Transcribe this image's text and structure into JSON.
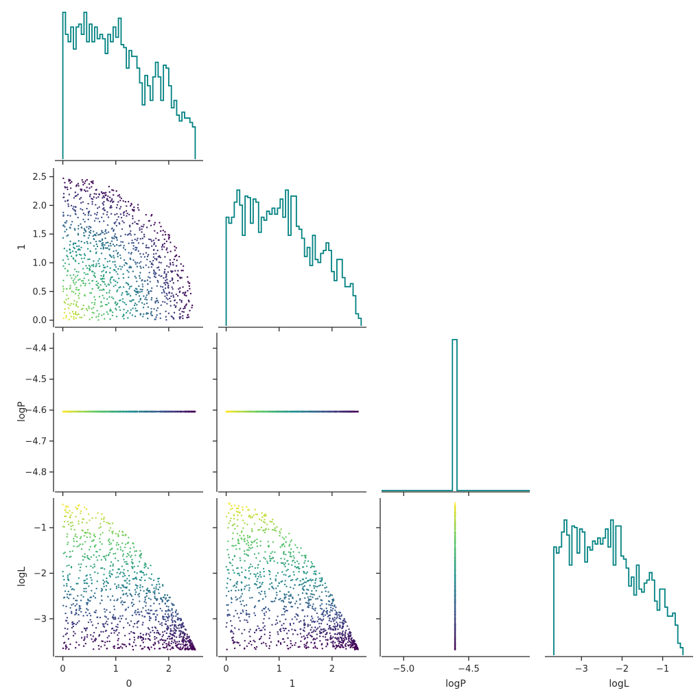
{
  "figure": {
    "variables": [
      "0",
      "1",
      "logP",
      "logL"
    ],
    "hist_color": "#008080",
    "colormap": "viridis"
  },
  "chart_data": [
    {
      "type": "histogram",
      "variable": "0",
      "row": 0,
      "col": 0,
      "xlim": [
        -0.15,
        2.65
      ],
      "bin_range": [
        0.0,
        2.5
      ],
      "counts": [
        1.0,
        0.85,
        0.8,
        0.9,
        0.75,
        0.9,
        0.92,
        0.85,
        1.0,
        0.8,
        0.92,
        0.8,
        0.9,
        0.82,
        0.85,
        0.82,
        0.72,
        0.85,
        0.8,
        0.9,
        0.83,
        0.96,
        0.78,
        0.76,
        0.62,
        0.74,
        0.7,
        0.7,
        0.62,
        0.52,
        0.37,
        0.57,
        0.5,
        0.4,
        0.56,
        0.66,
        0.56,
        0.4,
        0.64,
        0.62,
        0.5,
        0.35,
        0.4,
        0.3,
        0.26,
        0.32,
        0.28,
        0.28,
        0.25,
        0.22
      ]
    },
    {
      "type": "histogram",
      "variable": "1",
      "row": 1,
      "col": 1,
      "xlim": [
        -0.15,
        2.65
      ],
      "bin_range": [
        0.0,
        2.55
      ],
      "counts": [
        0.72,
        0.68,
        0.72,
        0.82,
        0.9,
        0.8,
        0.6,
        0.86,
        0.85,
        0.68,
        0.84,
        0.82,
        0.62,
        0.72,
        0.7,
        0.76,
        0.74,
        0.78,
        0.74,
        0.78,
        0.84,
        0.72,
        0.9,
        0.6,
        0.86,
        0.86,
        0.66,
        0.64,
        0.58,
        0.46,
        0.52,
        0.4,
        0.6,
        0.44,
        0.42,
        0.48,
        0.5,
        0.55,
        0.5,
        0.36,
        0.3,
        0.44,
        0.44,
        0.32,
        0.26,
        0.26,
        0.28,
        0.2,
        0.08,
        0.05
      ]
    },
    {
      "type": "histogram",
      "variable": "logP",
      "row": 2,
      "col": 2,
      "xlim": [
        -5.17,
        -4.03
      ],
      "bins": [
        {
          "from": -4.625,
          "to": -4.59,
          "count": 1.0
        }
      ]
    },
    {
      "type": "histogram",
      "variable": "logL",
      "row": 3,
      "col": 3,
      "xlim": [
        -3.9,
        -0.25
      ],
      "bin_range": [
        -3.68,
        -0.5
      ],
      "counts": [
        0.72,
        0.68,
        0.72,
        0.82,
        0.9,
        0.8,
        0.6,
        0.86,
        0.85,
        0.68,
        0.84,
        0.82,
        0.62,
        0.72,
        0.7,
        0.76,
        0.74,
        0.78,
        0.74,
        0.78,
        0.84,
        0.72,
        0.9,
        0.6,
        0.86,
        0.86,
        0.66,
        0.64,
        0.58,
        0.46,
        0.52,
        0.4,
        0.6,
        0.44,
        0.42,
        0.48,
        0.5,
        0.55,
        0.5,
        0.36,
        0.3,
        0.44,
        0.44,
        0.32,
        0.26,
        0.26,
        0.28,
        0.2,
        0.08,
        0.05
      ]
    },
    {
      "type": "scatter",
      "x_variable": "0",
      "y_variable": "1",
      "row": 1,
      "col": 0,
      "xlim": [
        -0.15,
        2.65
      ],
      "ylim": [
        -0.1,
        2.65
      ],
      "n_points": 1100,
      "x_range": [
        0.0,
        2.5
      ],
      "y_range": [
        0.0,
        2.5
      ],
      "boundary": "quarter circle of radius 2.5",
      "color_by": "logL"
    },
    {
      "type": "scatter",
      "x_variable": "0",
      "y_variable": "logP",
      "row": 2,
      "col": 0,
      "xlim": [
        -0.15,
        2.65
      ],
      "ylim": [
        -4.86,
        -4.35
      ],
      "x_range": [
        0.0,
        2.5
      ],
      "y_value": -4.605,
      "color_by": "logL"
    },
    {
      "type": "scatter",
      "x_variable": "1",
      "y_variable": "logP",
      "row": 2,
      "col": 1,
      "xlim": [
        -0.15,
        2.65
      ],
      "ylim": [
        -4.86,
        -4.35
      ],
      "x_range": [
        0.0,
        2.5
      ],
      "y_value": -4.605,
      "color_by": "logL"
    },
    {
      "type": "scatter",
      "x_variable": "0",
      "y_variable": "logL",
      "row": 3,
      "col": 0,
      "xlim": [
        -0.15,
        2.65
      ],
      "ylim": [
        -3.8,
        -0.35
      ],
      "n_points": 1100,
      "x_range": [
        0.0,
        2.5
      ],
      "y_range": [
        -3.68,
        -0.45
      ],
      "color_by": "logL"
    },
    {
      "type": "scatter",
      "x_variable": "1",
      "y_variable": "logL",
      "row": 3,
      "col": 1,
      "xlim": [
        -0.15,
        2.65
      ],
      "ylim": [
        -3.8,
        -0.35
      ],
      "n_points": 1100,
      "x_range": [
        0.0,
        2.5
      ],
      "y_range": [
        -3.68,
        -0.45
      ],
      "color_by": "logL"
    },
    {
      "type": "scatter",
      "x_variable": "logP",
      "y_variable": "logL",
      "row": 3,
      "col": 2,
      "xlim": [
        -5.17,
        -4.03
      ],
      "ylim": [
        -3.8,
        -0.35
      ],
      "x_value": -4.605,
      "y_range": [
        -3.68,
        -0.45
      ],
      "color_by": "logL"
    }
  ],
  "axes": {
    "x": {
      "0": {
        "label": "0",
        "ticks": [
          0,
          1,
          2
        ],
        "tick_labels": [
          "0",
          "1",
          "2"
        ]
      },
      "1": {
        "label": "1",
        "ticks": [
          0,
          1,
          2
        ],
        "tick_labels": [
          "0",
          "1",
          "2"
        ]
      },
      "logP": {
        "label": "logP",
        "ticks": [
          -5.0,
          -4.5
        ],
        "tick_labels": [
          "−5.0",
          "−4.5"
        ]
      },
      "logL": {
        "label": "logL",
        "ticks": [
          -3,
          -2,
          -1
        ],
        "tick_labels": [
          "−3",
          "−2",
          "−1"
        ]
      }
    },
    "y": {
      "1": {
        "label": "1",
        "ticks": [
          0.0,
          0.5,
          1.0,
          1.5,
          2.0,
          2.5
        ],
        "tick_labels": [
          "0.0",
          "0.5",
          "1.0",
          "1.5",
          "2.0",
          "2.5"
        ]
      },
      "logP": {
        "label": "logP",
        "ticks": [
          -4.8,
          -4.7,
          -4.6,
          -4.5,
          -4.4
        ],
        "tick_labels": [
          "−4.8",
          "−4.7",
          "−4.6",
          "−4.5",
          "−4.4"
        ]
      },
      "logL": {
        "label": "logL",
        "ticks": [
          -3,
          -2,
          -1
        ],
        "tick_labels": [
          "−3",
          "−2",
          "−1"
        ]
      }
    }
  }
}
